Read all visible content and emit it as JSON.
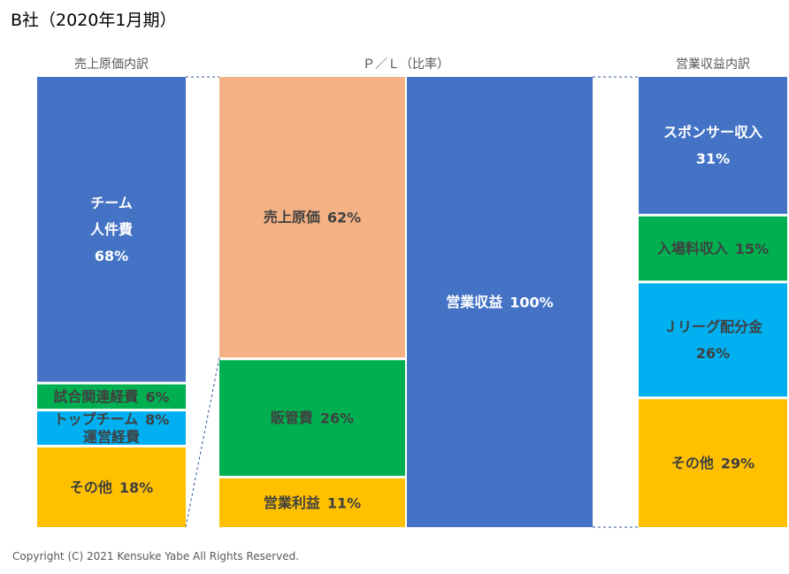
{
  "title": "B社（2020年1月期）",
  "copyright": "Copyright (C) 2021 Kensuke Yabe All Rights Reserved.",
  "chart_data": {
    "type": "stacked-bar",
    "columns": [
      {
        "key": "cost",
        "header": "売上原価内訳",
        "segments": [
          {
            "label": "チーム\n人件費",
            "percent_label": "68%",
            "value": 68,
            "color": "#4472C4",
            "text_color": "#ffffff"
          },
          {
            "label": "試合関連経費",
            "percent_label": "6%",
            "value": 6,
            "color": "#00B050",
            "text_color": "#404040"
          },
          {
            "label": "トップチーム\n運営経費",
            "percent_label": "8%",
            "value": 8,
            "color": "#00B0F0",
            "text_color": "#404040"
          },
          {
            "label": "その他",
            "percent_label": "18%",
            "value": 18,
            "color": "#FFC000",
            "text_color": "#404040"
          }
        ]
      },
      {
        "key": "pl_cost",
        "header": "",
        "segments": [
          {
            "label": "売上原価",
            "percent_label": "62%",
            "value": 62,
            "color": "#F4B183",
            "text_color": "#404040"
          },
          {
            "label": "販管費",
            "percent_label": "26%",
            "value": 26,
            "color": "#00B050",
            "text_color": "#404040"
          },
          {
            "label": "営業利益",
            "percent_label": "11%",
            "value": 11,
            "color": "#FFC000",
            "text_color": "#404040"
          }
        ]
      },
      {
        "key": "pl_revenue",
        "header": "",
        "segments": [
          {
            "label": "営業収益",
            "percent_label": "100%",
            "value": 100,
            "color": "#4472C4",
            "text_color": "#ffffff"
          }
        ]
      },
      {
        "key": "revenue",
        "header": "営業収益内訳",
        "segments": [
          {
            "label": "スポンサー収入",
            "percent_label": "31%",
            "value": 31,
            "color": "#4472C4",
            "text_color": "#ffffff"
          },
          {
            "label": "入場料収入",
            "percent_label": "15%",
            "value": 15,
            "color": "#00B050",
            "text_color": "#404040"
          },
          {
            "label": "Ｊリーグ配分金",
            "percent_label": "26%",
            "value": 26,
            "color": "#00B0F0",
            "text_color": "#404040"
          },
          {
            "label": "その他",
            "percent_label": "29%",
            "value": 29,
            "color": "#FFC000",
            "text_color": "#404040"
          }
        ]
      }
    ],
    "pl_header": "Ｐ／Ｌ（比率）"
  }
}
